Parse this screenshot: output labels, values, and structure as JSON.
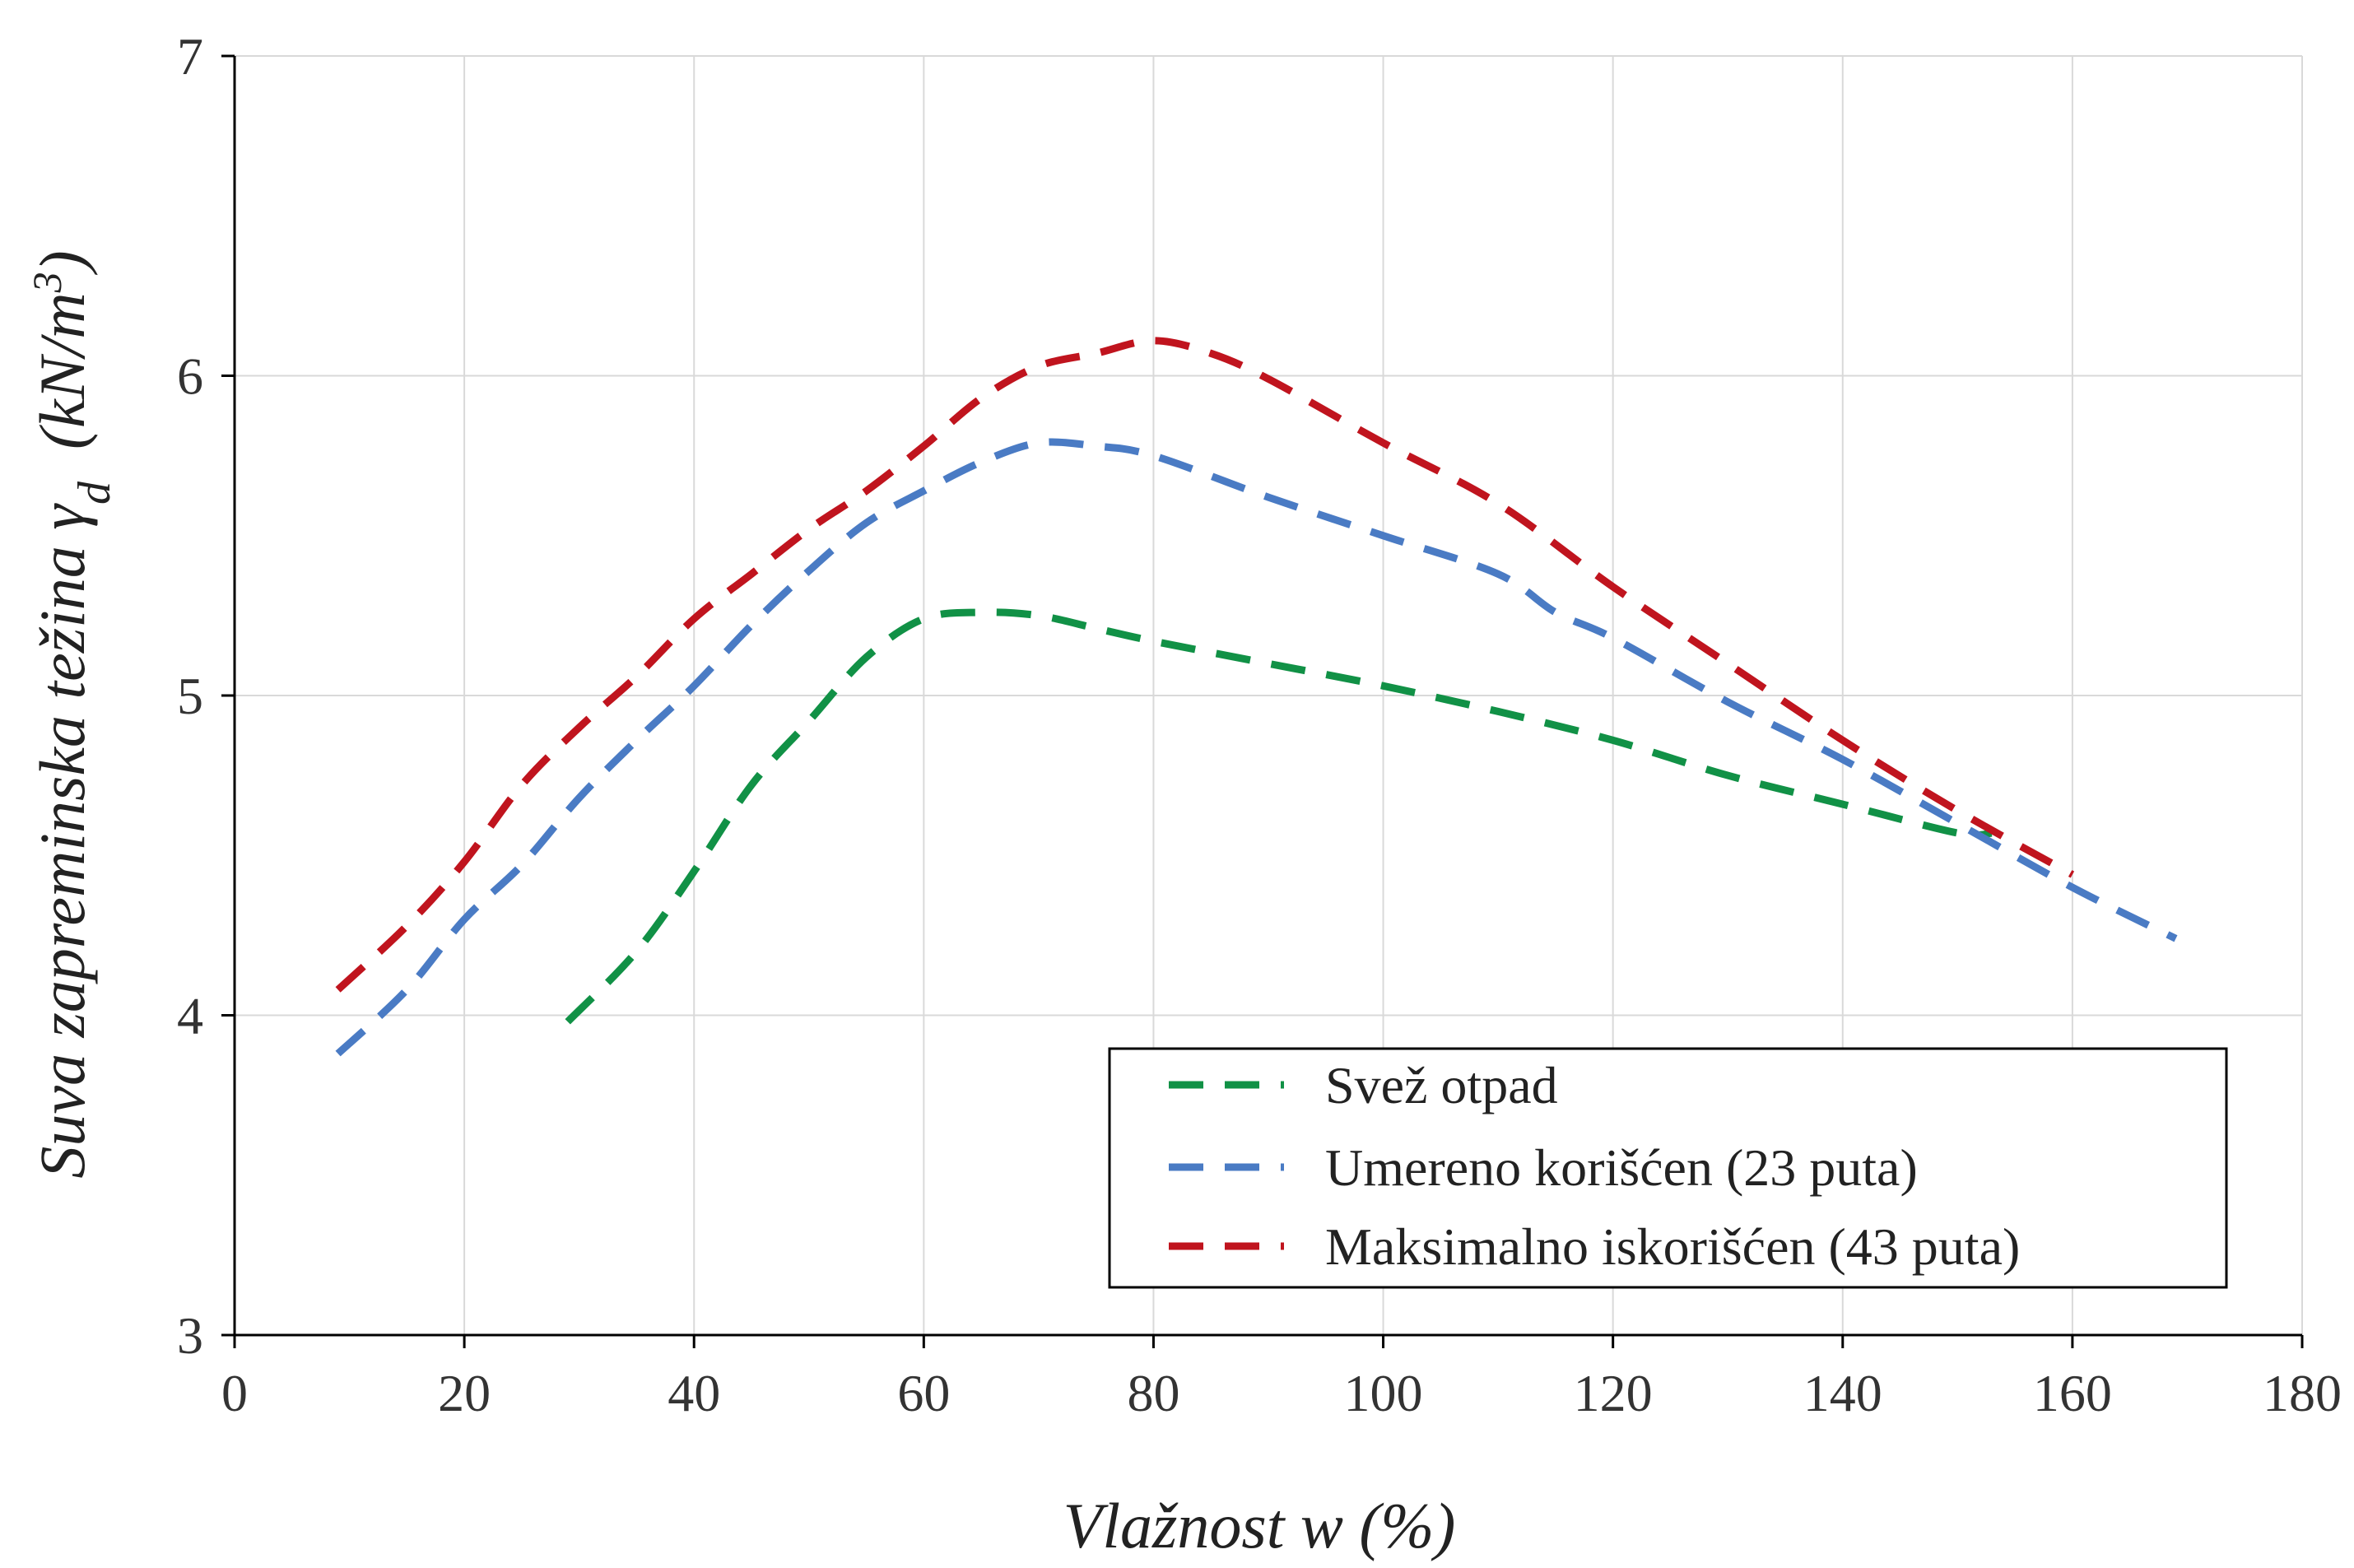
{
  "chart_data": {
    "type": "line",
    "xlabel": "Vlažnost w (%)",
    "ylabel_main": "Suva zapreminska težina γ",
    "ylabel_sub": "d",
    "ylabel_unit": "(kN/m",
    "ylabel_unit_sup": "3",
    "ylabel_unit_close": ")",
    "xlim": [
      0,
      180
    ],
    "ylim": [
      3,
      7
    ],
    "xticks": [
      0,
      20,
      40,
      60,
      80,
      100,
      120,
      140,
      160,
      180
    ],
    "yticks": [
      3,
      4,
      5,
      6,
      7
    ],
    "grid": true,
    "legend_position": "bottom-right",
    "series": [
      {
        "name": "Svež otpad",
        "color": "#119146",
        "x": [
          29,
          35,
          40,
          45,
          50,
          55,
          60,
          65,
          70,
          75,
          80,
          90,
          100,
          110,
          120,
          130,
          140,
          150,
          153
        ],
        "y": [
          3.98,
          4.2,
          4.45,
          4.72,
          4.92,
          5.12,
          5.24,
          5.26,
          5.25,
          5.21,
          5.17,
          5.1,
          5.03,
          4.95,
          4.86,
          4.75,
          4.66,
          4.57,
          4.57
        ]
      },
      {
        "name": "Umereno korišćen (23 puta)",
        "color": "#4a7bc4",
        "x": [
          9,
          15,
          20,
          25,
          30,
          35,
          40,
          45,
          50,
          55,
          60,
          65,
          70,
          75,
          80,
          90,
          100,
          110,
          115,
          120,
          130,
          140,
          150,
          160,
          169
        ],
        "y": [
          3.88,
          4.08,
          4.3,
          4.47,
          4.68,
          4.86,
          5.03,
          5.22,
          5.39,
          5.54,
          5.64,
          5.73,
          5.79,
          5.78,
          5.75,
          5.62,
          5.5,
          5.38,
          5.26,
          5.18,
          4.98,
          4.8,
          4.6,
          4.4,
          4.24
        ]
      },
      {
        "name": "Maksimalno iskorišćen (43 puta)",
        "color": "#c0141e",
        "x": [
          9,
          15,
          20,
          25,
          30,
          35,
          40,
          45,
          50,
          55,
          60,
          65,
          70,
          75,
          80,
          85,
          90,
          100,
          110,
          120,
          130,
          140,
          150,
          160
        ],
        "y": [
          4.08,
          4.28,
          4.48,
          4.72,
          4.9,
          5.06,
          5.24,
          5.38,
          5.52,
          5.64,
          5.78,
          5.93,
          6.03,
          6.07,
          6.11,
          6.07,
          5.99,
          5.79,
          5.6,
          5.34,
          5.1,
          4.86,
          4.64,
          4.44
        ]
      }
    ]
  }
}
